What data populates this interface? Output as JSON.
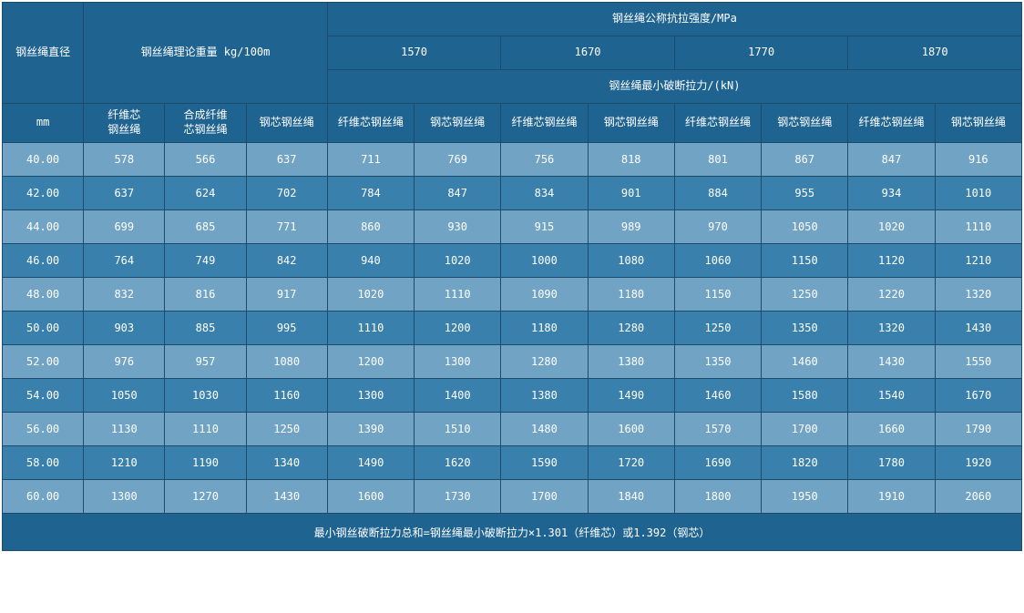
{
  "colors": {
    "header_bg": "#1f6390",
    "row_light": "#70a3c4",
    "row_dark": "#3a80ac",
    "border": "#1e4a6b",
    "text": "#ffffff"
  },
  "header": {
    "diameter": "钢丝绳直径",
    "weight": "钢丝绳理论重量  kg/100m",
    "tensile": "钢丝绳公称抗拉强度/MPa",
    "breaking": "钢丝绳最小破断拉力/(kN)",
    "mm": "mm",
    "grades": [
      "1570",
      "1670",
      "1770",
      "1870"
    ],
    "sub": {
      "fiber": "纤维芯\n钢丝绳",
      "syn": "合成纤维\n芯钢丝绳",
      "steel": "钢芯钢丝绳",
      "fiber_long": "纤维芯钢丝绳",
      "steel_long": "钢芯钢丝绳"
    }
  },
  "rows": [
    {
      "d": "40.00",
      "w": [
        "578",
        "566",
        "637"
      ],
      "b": [
        "711",
        "769",
        "756",
        "818",
        "801",
        "867",
        "847",
        "916"
      ]
    },
    {
      "d": "42.00",
      "w": [
        "637",
        "624",
        "702"
      ],
      "b": [
        "784",
        "847",
        "834",
        "901",
        "884",
        "955",
        "934",
        "1010"
      ]
    },
    {
      "d": "44.00",
      "w": [
        "699",
        "685",
        "771"
      ],
      "b": [
        "860",
        "930",
        "915",
        "989",
        "970",
        "1050",
        "1020",
        "1110"
      ]
    },
    {
      "d": "46.00",
      "w": [
        "764",
        "749",
        "842"
      ],
      "b": [
        "940",
        "1020",
        "1000",
        "1080",
        "1060",
        "1150",
        "1120",
        "1210"
      ]
    },
    {
      "d": "48.00",
      "w": [
        "832",
        "816",
        "917"
      ],
      "b": [
        "1020",
        "1110",
        "1090",
        "1180",
        "1150",
        "1250",
        "1220",
        "1320"
      ]
    },
    {
      "d": "50.00",
      "w": [
        "903",
        "885",
        "995"
      ],
      "b": [
        "1110",
        "1200",
        "1180",
        "1280",
        "1250",
        "1350",
        "1320",
        "1430"
      ]
    },
    {
      "d": "52.00",
      "w": [
        "976",
        "957",
        "1080"
      ],
      "b": [
        "1200",
        "1300",
        "1280",
        "1380",
        "1350",
        "1460",
        "1430",
        "1550"
      ]
    },
    {
      "d": "54.00",
      "w": [
        "1050",
        "1030",
        "1160"
      ],
      "b": [
        "1300",
        "1400",
        "1380",
        "1490",
        "1460",
        "1580",
        "1540",
        "1670"
      ]
    },
    {
      "d": "56.00",
      "w": [
        "1130",
        "1110",
        "1250"
      ],
      "b": [
        "1390",
        "1510",
        "1480",
        "1600",
        "1570",
        "1700",
        "1660",
        "1790"
      ]
    },
    {
      "d": "58.00",
      "w": [
        "1210",
        "1190",
        "1340"
      ],
      "b": [
        "1490",
        "1620",
        "1590",
        "1720",
        "1690",
        "1820",
        "1780",
        "1920"
      ]
    },
    {
      "d": "60.00",
      "w": [
        "1300",
        "1270",
        "1430"
      ],
      "b": [
        "1600",
        "1730",
        "1700",
        "1840",
        "1800",
        "1950",
        "1910",
        "2060"
      ]
    }
  ],
  "footer": "最小钢丝破断拉力总和=钢丝绳最小破断拉力×1.301（纤维芯）或1.392（钢芯）"
}
